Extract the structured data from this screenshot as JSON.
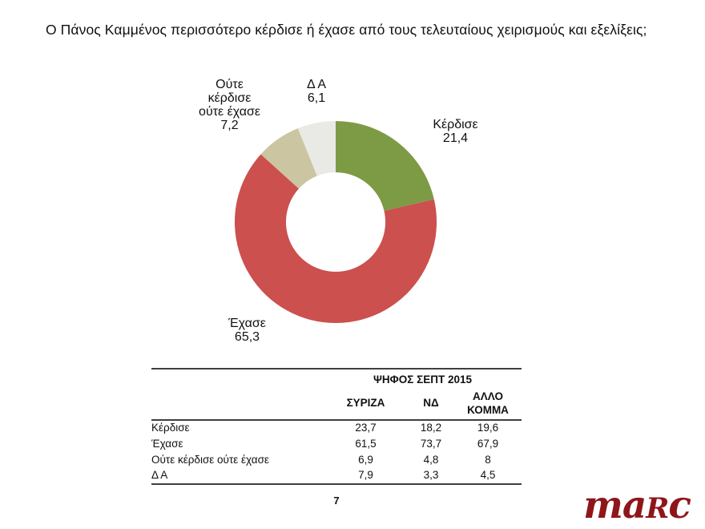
{
  "page": {
    "title": "Ο Πάνος Καμμένος  περισσότερο κέρδισε ή έχασε  από τους τελευταίους  χειρισμούς και εξελίξεις;",
    "page_number": "7",
    "logo": {
      "pre": "ma",
      "cap": "R",
      "post": "c",
      "color": "#8e161a"
    }
  },
  "chart_data": {
    "type": "pie",
    "subtype": "donut",
    "title": "Ο Πάνος Καμμένος περισσότερο κέρδισε ή έχασε από τους τελευταίους χειρισμούς και εξελίξεις;",
    "start_angle_deg": 0,
    "direction": "clockwise",
    "inner_radius_ratio": 0.49,
    "slices": [
      {
        "label": "Κέρδισε",
        "value": 21.4,
        "value_display": "21,4",
        "color": "#7d9b45"
      },
      {
        "label": "Έχασε",
        "value": 65.3,
        "value_display": "65,3",
        "color": "#cb504e"
      },
      {
        "label": "Ούτε κέρδισε ούτε έχασε",
        "value": 7.2,
        "value_display": "7,2",
        "color": "#cbc5a2"
      },
      {
        "label": "Δ Α",
        "value": 6.1,
        "value_display": "6,1",
        "color": "#e9e9e6"
      }
    ],
    "callout_neither_lines": [
      "Ούτε",
      "κέρδισε",
      "ούτε έχασε"
    ]
  },
  "table": {
    "group_header": "ΨΗΦΟΣ ΣΕΠΤ 2015",
    "columns": [
      "ΣΥΡΙΖΑ",
      "ΝΔ",
      "ΑΛΛΟ ΚΟΜΜΑ"
    ],
    "rows": [
      {
        "label": "Κέρδισε",
        "values": [
          "23,7",
          "18,2",
          "19,6"
        ]
      },
      {
        "label": "Έχασε",
        "values": [
          "61,5",
          "73,7",
          "67,9"
        ]
      },
      {
        "label": "Ούτε κέρδισε ούτε έχασε",
        "values": [
          "6,9",
          "4,8",
          "8"
        ]
      },
      {
        "label": "Δ Α",
        "values": [
          "7,9",
          "3,3",
          "4,5"
        ]
      }
    ]
  }
}
